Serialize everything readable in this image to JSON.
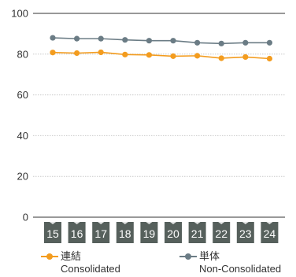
{
  "chart_data": {
    "type": "line",
    "x": [
      "15",
      "16",
      "17",
      "18",
      "19",
      "20",
      "21",
      "22",
      "23",
      "24"
    ],
    "ylim": [
      0,
      100
    ],
    "yticks": [
      0,
      20,
      40,
      60,
      80,
      100
    ],
    "grid": true,
    "legend_position": "bottom",
    "series": [
      {
        "name": "連結",
        "name_en": "Consolidated",
        "color": "#f39c1f",
        "values": [
          80.8,
          80.5,
          80.9,
          79.8,
          79.6,
          79.0,
          79.2,
          78.0,
          78.6,
          77.8
        ]
      },
      {
        "name": "単体",
        "name_en": "Non-Consolidated",
        "color": "#6b7c85",
        "values": [
          88.0,
          87.6,
          87.6,
          87.0,
          86.6,
          86.6,
          85.6,
          85.2,
          85.6,
          85.6
        ]
      }
    ],
    "xtick_box_color": "#56605c"
  }
}
